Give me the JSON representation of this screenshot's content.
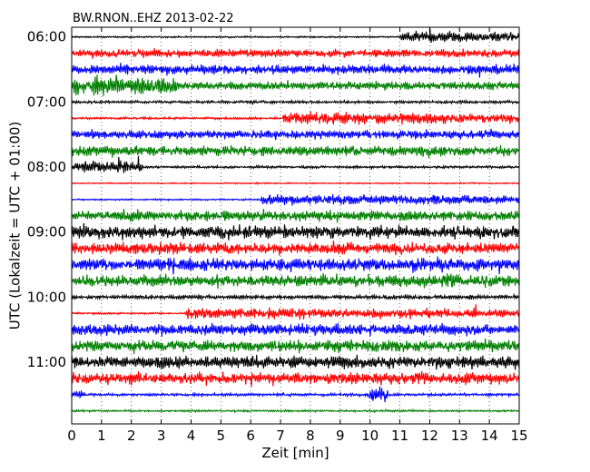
{
  "chart_data": {
    "type": "line",
    "title": "BW.RNON..EHZ 2013-02-22",
    "xlabel": "Zeit  [min]",
    "ylabel": "UTC (Lokalzeit = UTC + 01:00)",
    "xlim": [
      0,
      15
    ],
    "x_ticks": [
      "0",
      "1",
      "2",
      "3",
      "4",
      "5",
      "6",
      "7",
      "8",
      "9",
      "10",
      "11",
      "12",
      "13",
      "14",
      "15"
    ],
    "y_ticks": [
      "06:00",
      "07:00",
      "08:00",
      "09:00",
      "10:00",
      "11:00"
    ],
    "grid": true,
    "trace_start": "06:00",
    "trace_interval_min": 15,
    "trace_colors": [
      "#000000",
      "#ff0000",
      "#0000ff",
      "#008000"
    ],
    "traces": [
      {
        "label": "06:00",
        "amp": 0.1,
        "noise": "low",
        "events": [
          {
            "start_min": 11.0,
            "end_min": 15.0,
            "level": "strong"
          }
        ]
      },
      {
        "label": "06:15",
        "amp": 0.5,
        "noise": "medium",
        "events": []
      },
      {
        "label": "06:30",
        "amp": 0.6,
        "noise": "medium",
        "events": []
      },
      {
        "label": "06:45",
        "amp": 0.5,
        "noise": "medium",
        "events": [
          {
            "start_min": 0.0,
            "end_min": 3.5,
            "level": "medium"
          }
        ]
      },
      {
        "label": "07:00",
        "amp": 0.18,
        "noise": "low",
        "events": []
      },
      {
        "label": "07:15",
        "amp": 0.15,
        "noise": "low",
        "events": [
          {
            "start_min": 7.0,
            "end_min": 15.0,
            "level": "strong"
          }
        ]
      },
      {
        "label": "07:30",
        "amp": 0.55,
        "noise": "medium",
        "events": []
      },
      {
        "label": "07:45",
        "amp": 0.65,
        "noise": "high",
        "events": []
      },
      {
        "label": "08:00",
        "amp": 0.15,
        "noise": "low",
        "events": [
          {
            "start_min": 0.0,
            "end_min": 2.4,
            "level": "strong"
          }
        ]
      },
      {
        "label": "08:15",
        "amp": 0.08,
        "noise": "low",
        "events": []
      },
      {
        "label": "08:30",
        "amp": 0.1,
        "noise": "low",
        "events": [
          {
            "start_min": 6.3,
            "end_min": 15.0,
            "level": "strong"
          }
        ]
      },
      {
        "label": "08:45",
        "amp": 0.65,
        "noise": "high",
        "events": []
      },
      {
        "label": "09:00",
        "amp": 0.8,
        "noise": "high",
        "events": []
      },
      {
        "label": "09:15",
        "amp": 0.75,
        "noise": "high",
        "events": []
      },
      {
        "label": "09:30",
        "amp": 0.8,
        "noise": "high",
        "events": []
      },
      {
        "label": "09:45",
        "amp": 0.75,
        "noise": "high",
        "events": [
          {
            "start_min": 12.5,
            "end_min": 13.0,
            "level": "medium"
          }
        ]
      },
      {
        "label": "10:00",
        "amp": 0.25,
        "noise": "low",
        "events": []
      },
      {
        "label": "10:15",
        "amp": 0.12,
        "noise": "low",
        "events": [
          {
            "start_min": 3.8,
            "end_min": 15.0,
            "level": "strong"
          }
        ]
      },
      {
        "label": "10:30",
        "amp": 0.7,
        "noise": "high",
        "events": []
      },
      {
        "label": "10:45",
        "amp": 0.75,
        "noise": "high",
        "events": []
      },
      {
        "label": "11:00",
        "amp": 0.8,
        "noise": "high",
        "events": []
      },
      {
        "label": "11:15",
        "amp": 0.75,
        "noise": "high",
        "events": []
      },
      {
        "label": "11:30",
        "amp": 0.18,
        "noise": "low",
        "events": [
          {
            "start_min": 0.0,
            "end_min": 0.4,
            "level": "medium"
          },
          {
            "start_min": 9.9,
            "end_min": 10.6,
            "level": "strong"
          }
        ]
      },
      {
        "label": "11:45",
        "amp": 0.12,
        "noise": "low",
        "events": []
      }
    ]
  }
}
